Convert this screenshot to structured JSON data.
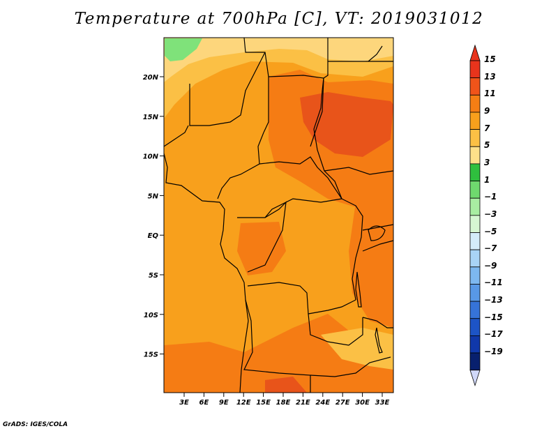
{
  "title": "Temperature at 700hPa [C], VT: 2019031012",
  "credit": "GrADS: IGES/COLA",
  "map": {
    "lat_ticks": [
      "20N",
      "15N",
      "10N",
      "5N",
      "EQ",
      "5S",
      "10S",
      "15S"
    ],
    "lon_ticks": [
      "3E",
      "6E",
      "9E",
      "12E",
      "15E",
      "18E",
      "21E",
      "24E",
      "27E",
      "30E",
      "33E"
    ],
    "field_colors": {
      "base": "#f8a01c",
      "warm": "#f57c14",
      "hot": "#e8541a",
      "cool": "#fbc045",
      "cooler": "#fdd67c",
      "green": "#7fe27a"
    }
  },
  "colorbar": {
    "labels": [
      "15",
      "13",
      "11",
      "9",
      "7",
      "5",
      "3",
      "1",
      "−1",
      "−3",
      "−5",
      "−7",
      "−9",
      "−11",
      "−13",
      "−15",
      "−17",
      "−19"
    ],
    "colors": [
      "#e8341c",
      "#f0541a",
      "#f57e14",
      "#f8a01c",
      "#fbc045",
      "#fde08a",
      "#2fbf3e",
      "#6fd96e",
      "#a8eda2",
      "#d6f6d2",
      "#d4ecfa",
      "#a9d4f6",
      "#7db8f0",
      "#5898e6",
      "#3673d8",
      "#1d54c6",
      "#1038aa",
      "#08206e"
    ],
    "top_arrow_color": "#e8341c",
    "bottom_arrow_color": "#d0d8f8"
  }
}
